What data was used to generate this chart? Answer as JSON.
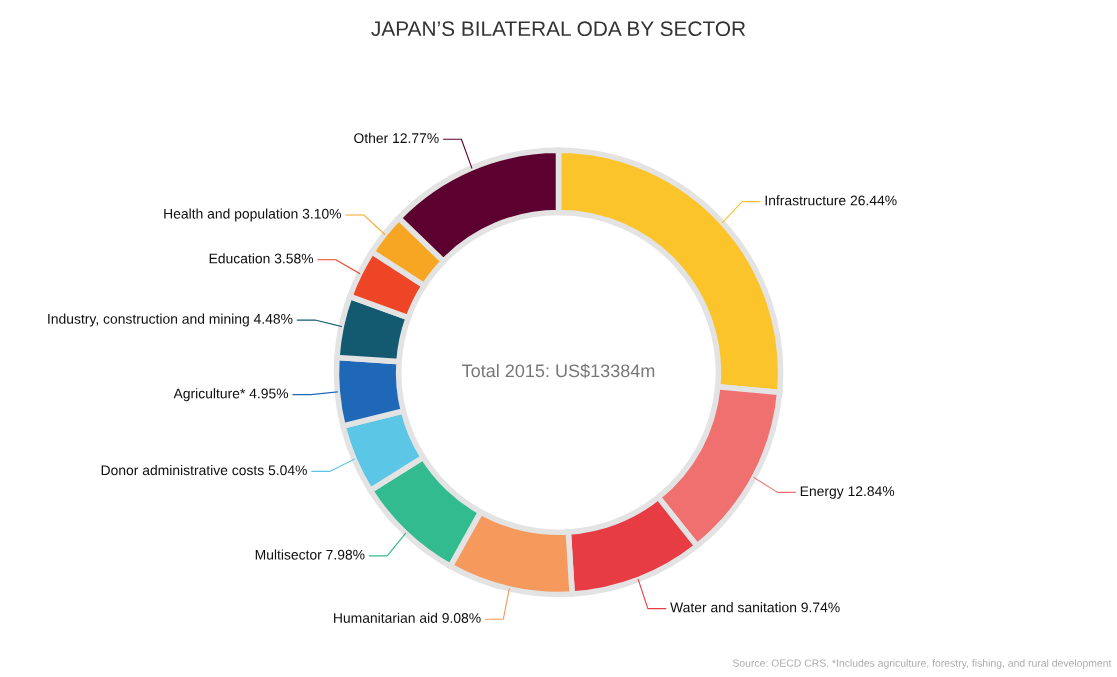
{
  "chart_data": {
    "type": "donut",
    "title": "JAPAN’S BILATERAL ODA BY SECTOR",
    "categories": [
      "Infrastructure",
      "Energy",
      "Water and sanitation",
      "Humanitarian aid",
      "Multisector",
      "Donor administrative costs",
      "Agriculture*",
      "Industry, construction and mining",
      "Education",
      "Health and population",
      "Other"
    ],
    "values": [
      26.44,
      12.84,
      9.74,
      9.08,
      7.98,
      5.04,
      4.95,
      4.48,
      3.58,
      3.1,
      12.77
    ],
    "value_labels": [
      "26.44%",
      "12.84%",
      "9.74%",
      "9.08%",
      "7.98%",
      "5.04%",
      "4.95%",
      "4.48%",
      "3.58%",
      "3.10%",
      "12.77%"
    ],
    "colors": [
      "#fbc42a",
      "#f07070",
      "#e83c45",
      "#f59a5c",
      "#33bb90",
      "#5bc6e6",
      "#1f68b8",
      "#135a70",
      "#ee4527",
      "#f6a623",
      "#5c0030"
    ],
    "annotations": [
      "Total 2015: US$13384m",
      "Source: OECD CRS. *Includes agriculture, forestry, fishing, and rural development"
    ]
  }
}
